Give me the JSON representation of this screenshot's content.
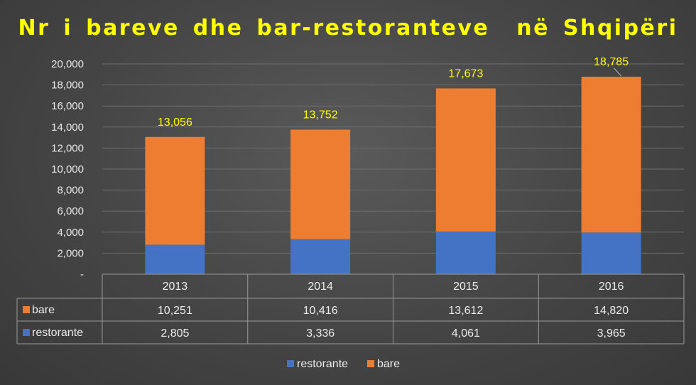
{
  "chart_data": {
    "type": "bar",
    "stacked": true,
    "title": "Nr i bareve dhe bar-restoranteve  në Shqipëri",
    "categories": [
      "2013",
      "2014",
      "2015",
      "2016"
    ],
    "series": [
      {
        "name": "restorante",
        "values": [
          2805,
          3336,
          4061,
          3965
        ],
        "color": "#4472c4",
        "display": [
          "2,805",
          "3,336",
          "4,061",
          "3,965"
        ]
      },
      {
        "name": "bare",
        "values": [
          10251,
          10416,
          13612,
          14820
        ],
        "color": "#ed7d31",
        "display": [
          "10,251",
          "10,416",
          "13,612",
          "14,820"
        ]
      }
    ],
    "totals": [
      13056,
      13752,
      17673,
      18785
    ],
    "total_labels": [
      "13,056",
      "13,752",
      "17,673",
      "18,785"
    ],
    "y_ticks": [
      "-",
      "2,000",
      "4,000",
      "6,000",
      "8,000",
      "10,000",
      "12,000",
      "14,000",
      "16,000",
      "18,000",
      "20,000"
    ],
    "ylim": [
      0,
      20000
    ],
    "ystep": 2000,
    "grid": true,
    "data_table": true,
    "table_row_order": [
      "bare",
      "restorante"
    ],
    "legend_order": [
      "restorante",
      "bare"
    ],
    "legend_position": "bottom",
    "label_color": "#ffff00",
    "grid_color": "#6e6e6e",
    "table_color": "#9a9a9a"
  }
}
